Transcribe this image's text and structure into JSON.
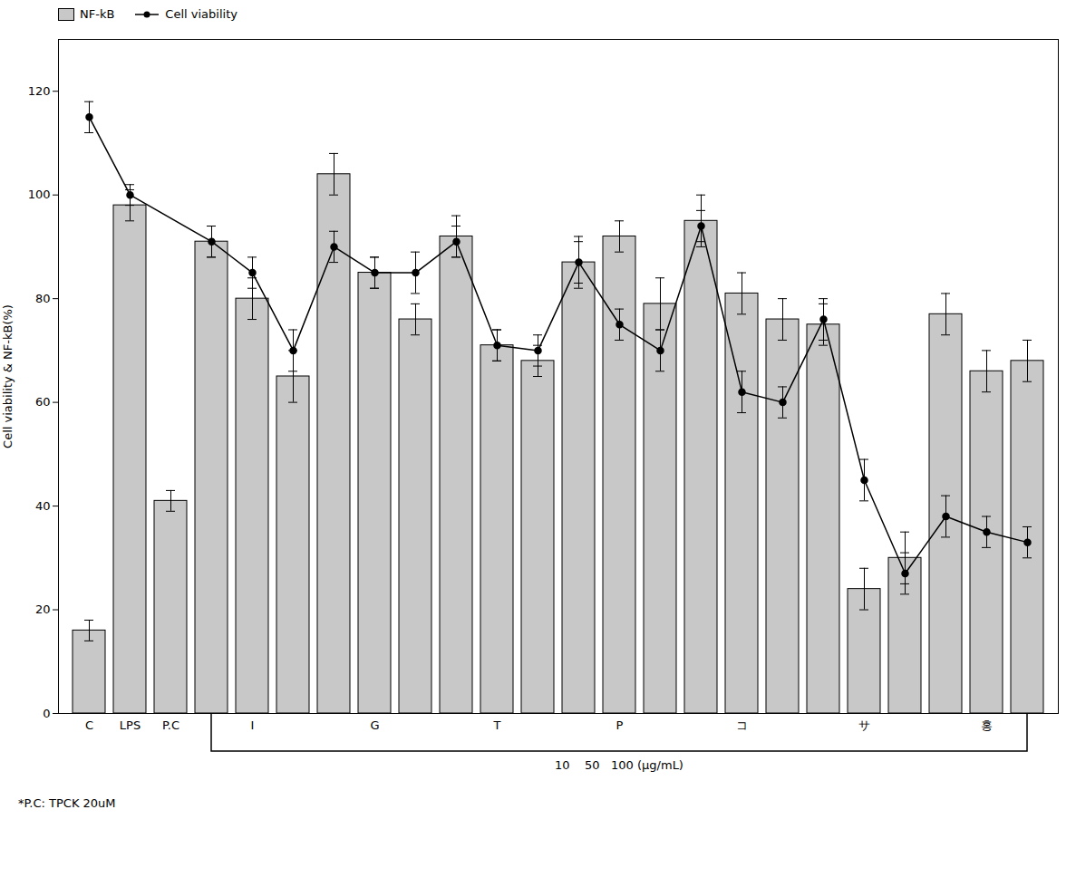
{
  "chart_data": {
    "type": "bar",
    "categories": [
      "C",
      "LPS",
      "P.C",
      null,
      "I",
      null,
      null,
      "G",
      null,
      null,
      "T",
      null,
      null,
      "P",
      null,
      null,
      "コ",
      null,
      null,
      "サ",
      null,
      null,
      "홍",
      null
    ],
    "series": [
      {
        "name": "NF-kB",
        "type": "bar",
        "color": "#c8c8c8",
        "values": [
          16,
          98,
          41,
          91,
          80,
          65,
          104,
          85,
          76,
          92,
          71,
          68,
          87,
          92,
          79,
          95,
          81,
          76,
          75,
          24,
          30,
          77,
          66,
          68
        ],
        "errors": [
          2,
          3,
          2,
          3,
          4,
          5,
          4,
          3,
          3,
          4,
          3,
          3,
          5,
          3,
          5,
          5,
          4,
          4,
          4,
          4,
          5,
          4,
          4,
          4
        ]
      },
      {
        "name": "Cell viability",
        "type": "line",
        "color": "#000000",
        "marker": "circle",
        "values": [
          115,
          100,
          null,
          91,
          85,
          70,
          90,
          85,
          85,
          91,
          71,
          70,
          87,
          75,
          70,
          94,
          62,
          60,
          76,
          45,
          27,
          38,
          35,
          33
        ],
        "errors": [
          3,
          2,
          null,
          3,
          3,
          4,
          3,
          3,
          4,
          3,
          3,
          3,
          4,
          3,
          4,
          3,
          4,
          3,
          4,
          4,
          4,
          4,
          3,
          3
        ]
      }
    ],
    "ylabel": "Cell viability & NF-kB(%)",
    "ylim": [
      0,
      130
    ],
    "yticks": [
      0,
      20,
      40,
      60,
      80,
      100,
      120
    ],
    "grid": false,
    "legend": "upper left",
    "annotations": [
      {
        "text": "10    50   100 (μg/mL)",
        "from": "I",
        "to": "홍"
      },
      {
        "text": "*P.C: TPCK 20uM"
      }
    ]
  }
}
